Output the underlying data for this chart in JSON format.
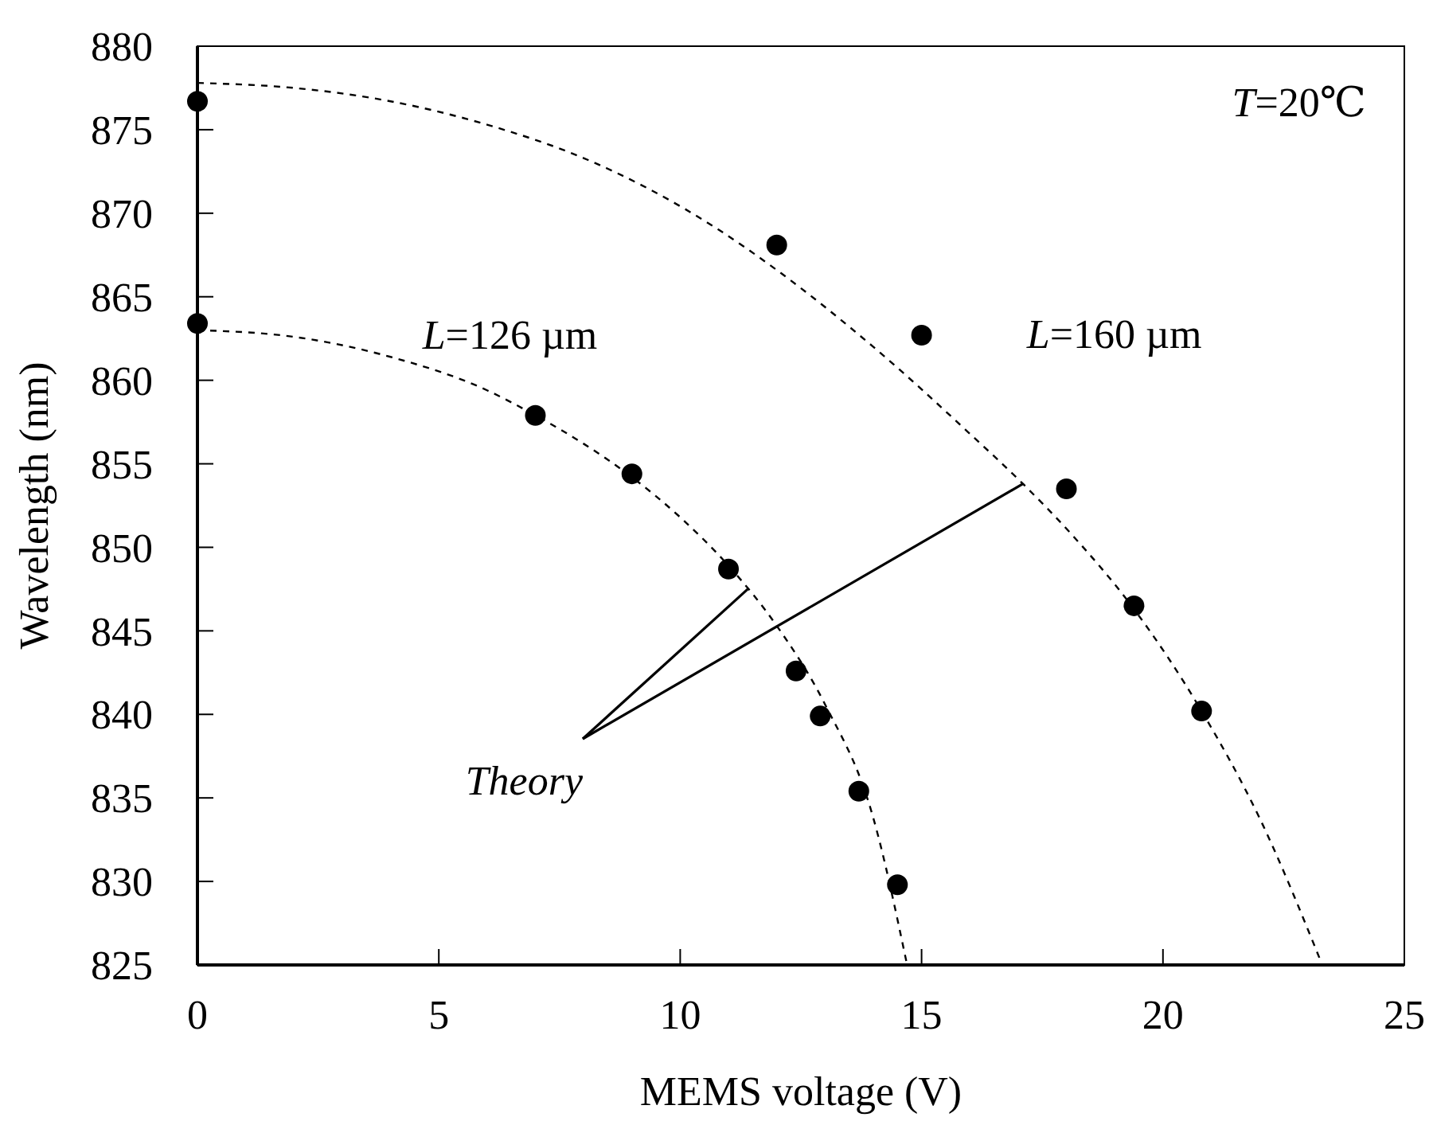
{
  "chart_data": {
    "type": "scatter",
    "xlabel": "MEMS voltage (V)",
    "ylabel": "Wavelength (nm)",
    "xlim": [
      0,
      25
    ],
    "xticks": [
      0,
      5,
      10,
      15,
      20,
      25
    ],
    "ylim": [
      825,
      880
    ],
    "yticks": [
      825,
      830,
      835,
      840,
      845,
      850,
      855,
      860,
      865,
      870,
      875,
      880
    ],
    "grid": false,
    "legend": false,
    "marker": "circle",
    "annotations": [
      "T=20℃",
      {
        "text": "Theory",
        "x": 11.4,
        "y": 847.5
      }
    ],
    "series": [
      {
        "name": "L=126 µm",
        "color": "#000000",
        "x": [
          0,
          7,
          9,
          11,
          12.4,
          12.9,
          13.7,
          14.5
        ],
        "values": [
          863.4,
          857.9,
          854.4,
          848.7,
          842.6,
          839.9,
          835.4,
          829.8
        ]
      },
      {
        "name": "L=160 µm",
        "color": "#000000",
        "x": [
          0,
          12,
          15,
          18,
          19.4,
          20.8
        ],
        "values": [
          876.7,
          868.1,
          862.7,
          853.5,
          846.5,
          840.2
        ]
      },
      {
        "type": "line",
        "color": "#000000",
        "line_style": "dashed",
        "marker": "none",
        "x": [
          0,
          2,
          4,
          6,
          7,
          8,
          9,
          10,
          11,
          12,
          13,
          14,
          14.7
        ],
        "values": [
          863,
          862.6,
          861.4,
          859.4,
          857.9,
          856.2,
          854.2,
          851.8,
          848.9,
          845.3,
          840.6,
          833.8,
          825
        ]
      },
      {
        "type": "line",
        "color": "#000000",
        "line_style": "dashed",
        "marker": "none",
        "x": [
          0,
          2,
          4,
          6,
          8,
          10.75,
          12,
          14,
          16,
          17.1,
          18.1,
          19.4,
          20.8,
          22,
          23.3
        ],
        "values": [
          877.8,
          877.5,
          876.7,
          875.3,
          873.3,
          869.1,
          866.6,
          862,
          856.8,
          853.8,
          850.8,
          846.3,
          840.2,
          833.8,
          825
        ]
      }
    ]
  }
}
